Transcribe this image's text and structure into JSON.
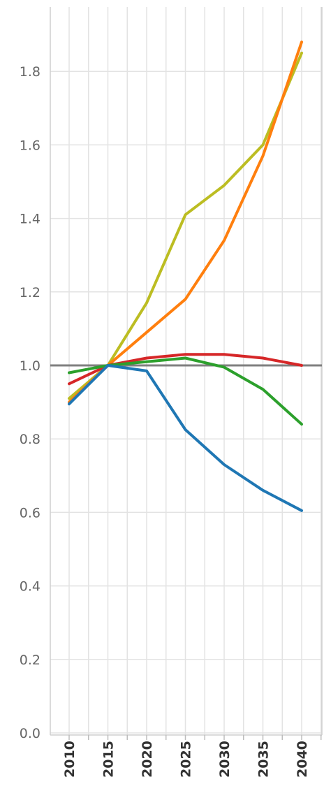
{
  "chart_data": {
    "type": "line",
    "title": "",
    "xlabel": "",
    "ylabel": "",
    "x": [
      2010,
      2015,
      2020,
      2025,
      2030,
      2035,
      2040
    ],
    "x_tick_labels": [
      "2010",
      "2015",
      "2020",
      "2025",
      "2030",
      "2035",
      "2040"
    ],
    "y_tick_labels": [
      "0.0",
      "0.2",
      "0.4",
      "0.6",
      "0.8",
      "1.0",
      "1.2",
      "1.4",
      "1.6",
      "1.8"
    ],
    "ylim": [
      0,
      1.9
    ],
    "grid": true,
    "legend": "none",
    "reference_line": {
      "y": 1.0,
      "color": "#7f7f7f"
    },
    "series": [
      {
        "color": "#bcbd22",
        "values": [
          0.91,
          1.0,
          1.17,
          1.41,
          1.49,
          1.6,
          1.85
        ]
      },
      {
        "color": "#ff7f0e",
        "values": [
          0.9,
          1.0,
          1.09,
          1.18,
          1.34,
          1.57,
          1.88
        ]
      },
      {
        "color": "#d62728",
        "values": [
          0.95,
          1.0,
          1.02,
          1.03,
          1.03,
          1.02,
          1.0
        ]
      },
      {
        "color": "#2ca02c",
        "values": [
          0.98,
          1.0,
          1.01,
          1.02,
          0.995,
          0.935,
          0.84
        ]
      },
      {
        "color": "#1f77b4",
        "values": [
          0.895,
          1.0,
          0.985,
          0.825,
          0.73,
          0.66,
          0.605
        ]
      }
    ]
  }
}
